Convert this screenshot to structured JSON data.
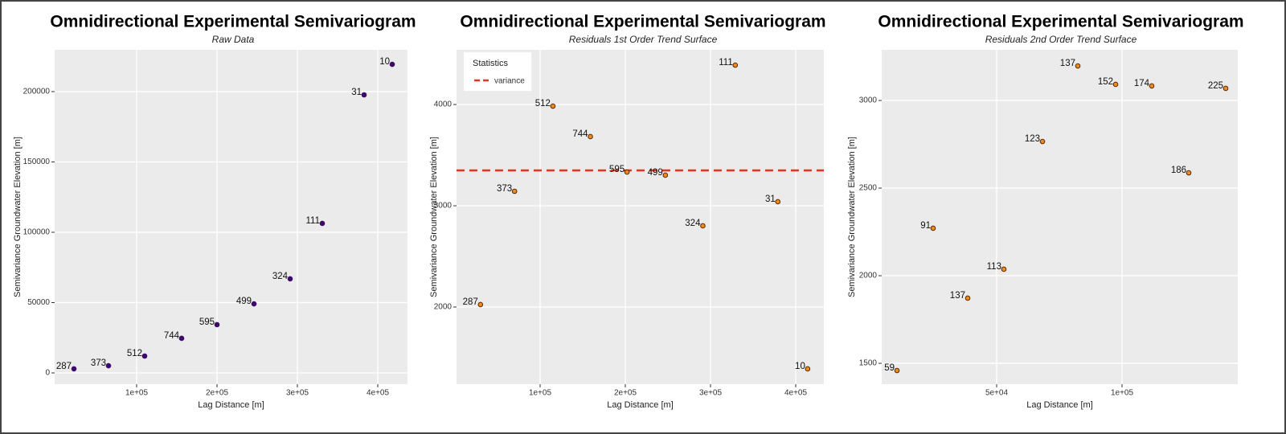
{
  "chart_data": [
    {
      "type": "scatter",
      "title": "Omnidirectional Experimental Semivariogram",
      "subtitle": "Raw Data",
      "x_label": "Lag Distance [m]",
      "y_label": "Semivariance Groundwater Elevation [m]",
      "x": [
        22000,
        65000,
        110000,
        156000,
        200000,
        246000,
        291000,
        331000,
        383000,
        418000
      ],
      "values": [
        2900,
        5100,
        12000,
        24600,
        34300,
        49100,
        66900,
        106300,
        197700,
        219400
      ],
      "labels": [
        "287",
        "373",
        "512",
        "744",
        "595",
        "499",
        "324",
        "111",
        "31",
        "10"
      ],
      "color": "#3d0a6b",
      "xlim": [
        -2000,
        437000
      ],
      "ylim": [
        -8000,
        229700
      ],
      "xticks": [
        {
          "value": 100000,
          "label": "1e+05"
        },
        {
          "value": 200000,
          "label": "2e+05"
        },
        {
          "value": 300000,
          "label": "3e+05"
        },
        {
          "value": 400000,
          "label": "4e+05"
        }
      ],
      "yticks": [
        0,
        50000,
        100000,
        150000,
        200000
      ],
      "grid": true
    },
    {
      "type": "scatter",
      "title": "Omnidirectional Experimental Semivariogram",
      "subtitle": "Residuals 1st Order Trend Surface",
      "x_label": "Lag Distance [m]",
      "y_label": "Semivariance Groundwater Elevation [m]",
      "x": [
        30000,
        70000,
        115000,
        159000,
        202000,
        247000,
        291000,
        329000,
        379000,
        414000
      ],
      "values": [
        2024,
        3143,
        3984,
        3683,
        3333,
        3302,
        2802,
        4389,
        3040,
        1389
      ],
      "labels": [
        "287",
        "373",
        "512",
        "744",
        "595",
        "499",
        "324",
        "111",
        "31",
        "10"
      ],
      "color": "#f08a1f",
      "xlim": [
        1900,
        433000
      ],
      "ylim": [
        1238,
        4540
      ],
      "xticks": [
        {
          "value": 100000,
          "label": "1e+05"
        },
        {
          "value": 200000,
          "label": "2e+05"
        },
        {
          "value": 300000,
          "label": "3e+05"
        },
        {
          "value": 400000,
          "label": "4e+05"
        }
      ],
      "yticks": [
        2000,
        3000,
        4000
      ],
      "grid": true,
      "legend_title": "Statistics",
      "reference_line": {
        "name": "variance",
        "value": 3349,
        "color": "#e8331f"
      }
    },
    {
      "type": "scatter",
      "title": "Omnidirectional Experimental Semivariogram",
      "subtitle": "Residuals 2nd Order Trend Surface",
      "x_label": "Lag Distance [m]",
      "y_label": "Semivariance Groundwater Elevation [m]",
      "x": [
        10260,
        38460,
        24680,
        52880,
        68270,
        82370,
        97440,
        111860,
        126600,
        141350
      ],
      "values": [
        1459,
        1872,
        2271,
        2037,
        2766,
        3197,
        3092,
        3083,
        2587,
        3069
      ],
      "labels": [
        "59",
        "137",
        "91",
        "113",
        "123",
        "137",
        "152",
        "174",
        "186",
        "225"
      ],
      "color": "#f08a1f",
      "xlim": [
        4170,
        146150
      ],
      "ylim": [
        1381,
        3289
      ],
      "xticks": [
        {
          "value": 50000,
          "label": "5e+04"
        },
        {
          "value": 100000,
          "label": "1e+05"
        }
      ],
      "yticks": [
        1500,
        2000,
        2500,
        3000
      ],
      "grid": true
    }
  ]
}
